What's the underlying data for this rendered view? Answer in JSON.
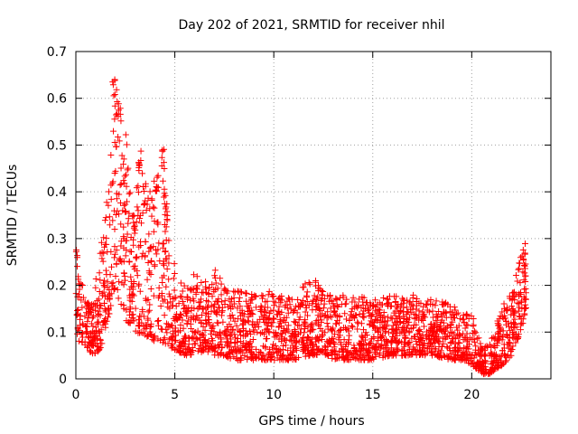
{
  "chart_data": {
    "type": "scatter",
    "title": "Day 202 of 2021, SRMTID for receiver nhil",
    "xlabel": "GPS time / hours",
    "ylabel": "SRMTID / TECUs",
    "xlim": [
      0,
      24
    ],
    "ylim": [
      0,
      0.7
    ],
    "xticks": [
      0,
      5,
      10,
      15,
      20
    ],
    "yticks": [
      0,
      0.1,
      0.2,
      0.3,
      0.4,
      0.5,
      0.6,
      0.7
    ],
    "grid": true,
    "marker": "+",
    "color": "#ff0000",
    "series": [
      {
        "name": "SRMTID",
        "envelope": {
          "x_range": [
            0,
            22.75
          ],
          "x": [
            0.0,
            0.2,
            0.5,
            0.8,
            1.2,
            1.5,
            1.8,
            2.0,
            2.2,
            2.5,
            2.8,
            3.0,
            3.3,
            3.6,
            4.0,
            4.3,
            4.6,
            5.0,
            5.5,
            6.0,
            6.5,
            7.0,
            7.5,
            8.0,
            9.0,
            10.0,
            11.0,
            12.0,
            12.5,
            13.0,
            14.0,
            15.0,
            16.0,
            17.0,
            18.0,
            19.0,
            19.5,
            20.0,
            20.3,
            20.6,
            20.9,
            21.2,
            21.6,
            22.0,
            22.3,
            22.6,
            22.75
          ],
          "low": [
            0.08,
            0.08,
            0.07,
            0.05,
            0.06,
            0.1,
            0.16,
            0.17,
            0.16,
            0.12,
            0.1,
            0.1,
            0.09,
            0.09,
            0.08,
            0.08,
            0.07,
            0.06,
            0.05,
            0.05,
            0.06,
            0.05,
            0.05,
            0.04,
            0.04,
            0.04,
            0.04,
            0.05,
            0.05,
            0.04,
            0.04,
            0.04,
            0.05,
            0.05,
            0.05,
            0.04,
            0.04,
            0.03,
            0.02,
            0.01,
            0.01,
            0.02,
            0.03,
            0.05,
            0.08,
            0.12,
            0.15
          ],
          "high": [
            0.3,
            0.22,
            0.18,
            0.16,
            0.27,
            0.35,
            0.5,
            0.66,
            0.62,
            0.55,
            0.4,
            0.38,
            0.5,
            0.4,
            0.43,
            0.5,
            0.38,
            0.25,
            0.2,
            0.23,
            0.21,
            0.24,
            0.2,
            0.19,
            0.18,
            0.19,
            0.17,
            0.23,
            0.19,
            0.18,
            0.18,
            0.17,
            0.18,
            0.18,
            0.17,
            0.16,
            0.15,
            0.14,
            0.1,
            0.07,
            0.08,
            0.11,
            0.16,
            0.2,
            0.25,
            0.3,
            0.29
          ],
          "peaks": [
            [
              1.9,
              0.655
            ],
            [
              2.1,
              0.62
            ],
            [
              3.25,
              0.505
            ],
            [
              4.4,
              0.502
            ],
            [
              4.55,
              0.38
            ]
          ]
        }
      }
    ]
  }
}
